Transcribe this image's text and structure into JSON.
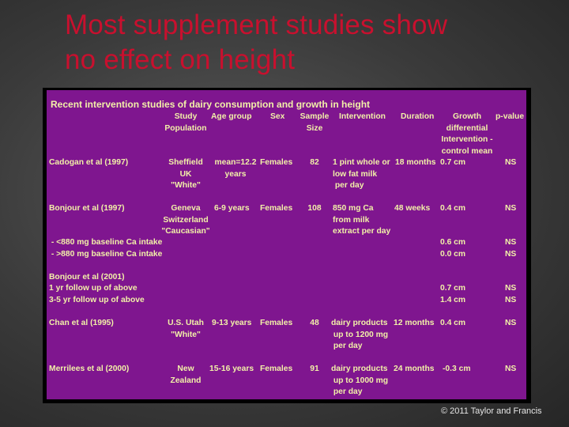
{
  "slide": {
    "title_lines": [
      "Most supplement studies show",
      "no effect on height"
    ],
    "footer": "© 2011 Taylor and Francis",
    "title_color": "#c8102e",
    "table_bg": "#7f168f",
    "table_text_color": "#f2f0a8"
  },
  "table": {
    "title": "Recent intervention studies  of dairy consumption and growth in height",
    "headers": {
      "study_population": [
        "Study",
        "Population"
      ],
      "age_group": [
        "Age group"
      ],
      "sex": [
        "Sex"
      ],
      "sample_size": [
        "Sample",
        "Size"
      ],
      "intervention": [
        "Intervention"
      ],
      "duration": [
        "Duration"
      ],
      "growth": [
        "Growth",
        "differential",
        "Intervention -",
        "control mean"
      ],
      "p_value": [
        "p-value"
      ]
    },
    "rows": {
      "cadogan": {
        "study": "Cadogan et al (1997)",
        "population": [
          "Sheffield",
          "UK",
          "\"White\""
        ],
        "age": [
          "mean=12.2",
          "years"
        ],
        "sex": "Females",
        "n": "82",
        "intervention": [
          "1 pint whole or",
          "low fat milk",
          " per day"
        ],
        "duration": "18 months",
        "growth": "0.7 cm",
        "p": "NS"
      },
      "bonjour1997": {
        "study": "Bonjour et al (1997)",
        "population": [
          "Geneva",
          "Switzerland",
          "\"Caucasian\""
        ],
        "age": [
          "6-9 years"
        ],
        "sex": "Females",
        "n": "108",
        "intervention": [
          "850 mg Ca",
          "from milk",
          "extract per day"
        ],
        "duration": "48 weeks",
        "growth": "0.4 cm",
        "p": "NS"
      },
      "bonjour1997_low": {
        "label": " - <880 mg baseline Ca intake",
        "growth": "0.6 cm",
        "p": "NS"
      },
      "bonjour1997_high": {
        "label": " - >880 mg baseline Ca intake",
        "growth": "0.0 cm",
        "p": "NS"
      },
      "bonjour2001": {
        "study": "Bonjour et al (2001)",
        "sub1": "1 yr follow up of above",
        "sub2": "3-5 yr follow up of above",
        "growth1": "0.7 cm",
        "growth2": "1.4 cm",
        "p1": "NS",
        "p2": "NS"
      },
      "chan": {
        "study": "Chan et al (1995)",
        "population": [
          "U.S. Utah",
          "\"White\""
        ],
        "age": [
          "9-13 years"
        ],
        "sex": "Females",
        "n": "48",
        "intervention": [
          "dairy products",
          " up to 1200 mg",
          " per day"
        ],
        "duration": "12 months",
        "growth": "0.4 cm",
        "p": "NS"
      },
      "merrilees": {
        "study": "Merrilees et al (2000)",
        "population": [
          "New",
          "Zealand"
        ],
        "age": [
          "15-16 years"
        ],
        "sex": "Females",
        "n": "91",
        "intervention": [
          "dairy products",
          " up to 1000 mg",
          " per day"
        ],
        "duration": "24 months",
        "growth": "-0.3 cm",
        "p": "NS"
      }
    }
  }
}
